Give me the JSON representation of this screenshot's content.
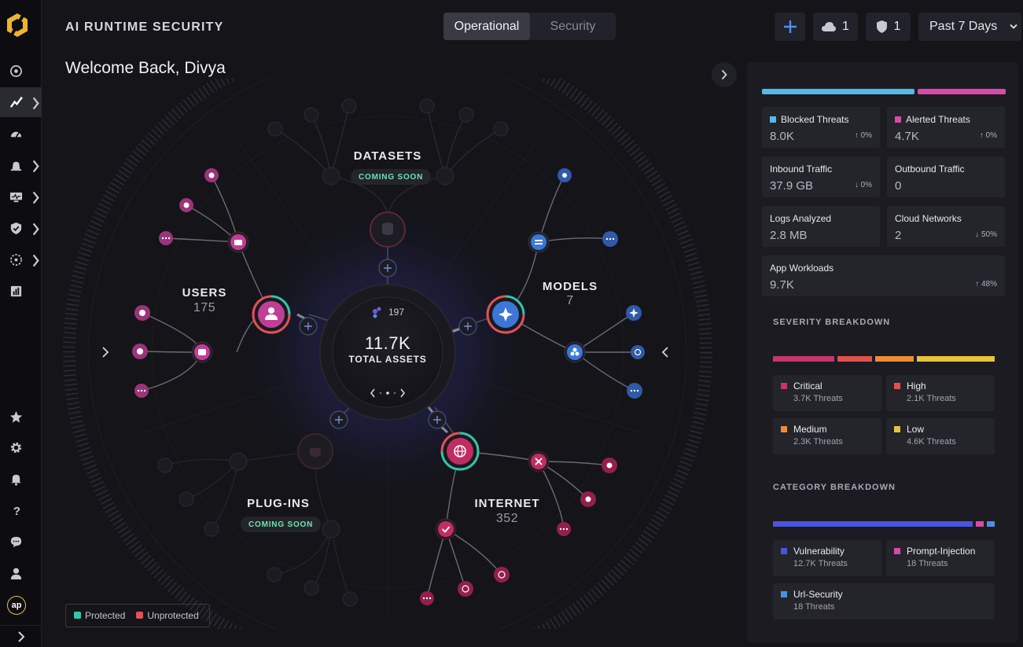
{
  "header": {
    "title": "AI RUNTIME SECURITY",
    "tabs": [
      {
        "label": "Operational",
        "active": true
      },
      {
        "label": "Security",
        "active": false
      }
    ],
    "add_label": "+",
    "cloud_count": "1",
    "shield_count": "1",
    "time_range": "Past 7 Days"
  },
  "welcome": "Welcome Back, Divya",
  "rail": {
    "avatar_initials": "ap",
    "items": [
      "radar-icon",
      "analytics-icon",
      "dashboard-icon",
      "alerts-icon",
      "monitor-icon",
      "shield-check-icon",
      "network-icon",
      "reports-icon",
      "star-icon",
      "settings-icon",
      "bell-icon",
      "help-icon",
      "chat-icon",
      "user-icon"
    ]
  },
  "graph": {
    "center": {
      "count": "197",
      "total": "11.7K",
      "total_label": "TOTAL ASSETS"
    },
    "datasets": {
      "label": "DATASETS",
      "status": "COMING SOON"
    },
    "users": {
      "label": "USERS",
      "count": "175"
    },
    "models": {
      "label": "MODELS",
      "count": "7"
    },
    "plugins": {
      "label": "PLUG-INS",
      "status": "COMING SOON"
    },
    "internet": {
      "label": "INTERNET",
      "count": "352"
    }
  },
  "legend": [
    {
      "label": "Protected",
      "color": "#35c4a8"
    },
    {
      "label": "Unprotected",
      "color": "#e2505a"
    }
  ],
  "panel": {
    "threat_bar": [
      {
        "color": "#56b9e8",
        "share": 0.63
      },
      {
        "color": "#d94aa8",
        "share": 0.37
      }
    ],
    "stats": [
      {
        "label": "Blocked Threats",
        "value": "8.0K",
        "delta": "↑ 0%",
        "color": "#56b9e8"
      },
      {
        "label": "Alerted Threats",
        "value": "4.7K",
        "delta": "↑ 0%",
        "color": "#d94aa8"
      },
      {
        "label": "Inbound Traffic",
        "value": "37.9 GB",
        "delta": "↓ 0%"
      },
      {
        "label": "Outbound Traffic",
        "value": "0",
        "delta": ""
      },
      {
        "label": "Logs Analyzed",
        "value": "2.8 MB",
        "delta": ""
      },
      {
        "label": "Cloud Networks",
        "value": "2",
        "delta": "↓ 50%"
      },
      {
        "label": "App Workloads",
        "value": "9.7K",
        "delta": "↑ 48%"
      }
    ],
    "severity_title": "SEVERITY BREAKDOWN",
    "severity": [
      {
        "label": "Critical",
        "threats": "3.7K Threats",
        "color": "#c7356b"
      },
      {
        "label": "High",
        "threats": "2.1K Threats",
        "color": "#e2504d"
      },
      {
        "label": "Medium",
        "threats": "2.3K Threats",
        "color": "#ee8c35"
      },
      {
        "label": "Low",
        "threats": "4.6K Threats",
        "color": "#e6c33a"
      }
    ],
    "category_title": "CATEGORY BREAKDOWN",
    "category": [
      {
        "label": "Vulnerability",
        "threats": "12.7K Threats",
        "color": "#4a55e0"
      },
      {
        "label": "Prompt-Injection",
        "threats": "18 Threats",
        "color": "#d94aa8"
      },
      {
        "label": "Url-Security",
        "threats": "18 Threats",
        "color": "#4a90e2"
      }
    ]
  }
}
